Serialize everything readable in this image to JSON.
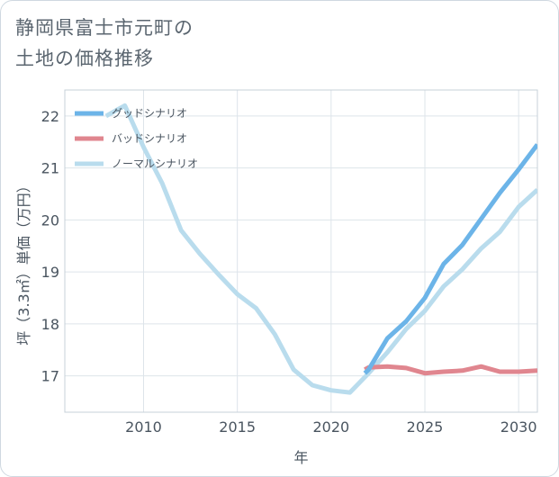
{
  "title_lines": [
    "静岡県富士市元町の",
    "土地の価格推移"
  ],
  "chart_data": {
    "type": "line",
    "title": "静岡県富士市元町の土地の価格推移",
    "xlabel": "年",
    "ylabel": "坪（3.3㎡）単価（万円）",
    "xlim": [
      2005.8,
      2031
    ],
    "ylim": [
      16.3,
      22.5
    ],
    "x_ticks": [
      2010,
      2015,
      2020,
      2025,
      2030
    ],
    "y_ticks": [
      17,
      18,
      19,
      20,
      21,
      22
    ],
    "series": [
      {
        "name": "グッドシナリオ",
        "color": "#6cb4e8",
        "points": [
          [
            2021.8,
            17.05
          ],
          [
            2022,
            17.12
          ],
          [
            2023,
            17.72
          ],
          [
            2024,
            18.05
          ],
          [
            2025,
            18.5
          ],
          [
            2026,
            19.15
          ],
          [
            2027,
            19.52
          ],
          [
            2028,
            20.02
          ],
          [
            2029,
            20.52
          ],
          [
            2030,
            20.97
          ],
          [
            2031,
            21.45
          ]
        ]
      },
      {
        "name": "バッドシナリオ",
        "color": "#e0868f",
        "points": [
          [
            2021.8,
            17.12
          ],
          [
            2022,
            17.16
          ],
          [
            2023,
            17.18
          ],
          [
            2024,
            17.15
          ],
          [
            2025,
            17.05
          ],
          [
            2026,
            17.08
          ],
          [
            2027,
            17.1
          ],
          [
            2028,
            17.18
          ],
          [
            2029,
            17.08
          ],
          [
            2030,
            17.08
          ],
          [
            2031,
            17.1
          ]
        ]
      },
      {
        "name": "ノーマルシナリオ",
        "color": "#b9dced",
        "points": [
          [
            2008,
            22.0
          ],
          [
            2009,
            22.2
          ],
          [
            2010,
            21.4
          ],
          [
            2011,
            20.7
          ],
          [
            2012,
            19.8
          ],
          [
            2013,
            19.35
          ],
          [
            2014,
            18.95
          ],
          [
            2015,
            18.57
          ],
          [
            2016,
            18.3
          ],
          [
            2017,
            17.8
          ],
          [
            2018,
            17.12
          ],
          [
            2019,
            16.82
          ],
          [
            2020,
            16.72
          ],
          [
            2021,
            16.68
          ],
          [
            2022,
            17.05
          ],
          [
            2023,
            17.45
          ],
          [
            2024,
            17.9
          ],
          [
            2025,
            18.25
          ],
          [
            2026,
            18.72
          ],
          [
            2027,
            19.05
          ],
          [
            2028,
            19.45
          ],
          [
            2029,
            19.77
          ],
          [
            2030,
            20.25
          ],
          [
            2031,
            20.58
          ]
        ]
      }
    ]
  }
}
